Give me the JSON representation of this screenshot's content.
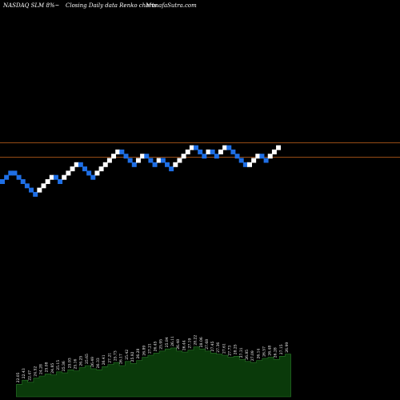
{
  "header": {
    "left": "NASDAQ SLM 8%~",
    "middle": "Closing Daily data  Renko  charts",
    "right": "MunafaSutra.com"
  },
  "colors": {
    "background": "#000000",
    "up_brick": "#ffffff",
    "down_brick": "#1f6fe5",
    "reference_line": "#c8641e",
    "volume_area": "#0a3a0a",
    "volume_edge": "#2a7a2a"
  },
  "chart_data": {
    "type": "renko",
    "brick_levels": [
      16,
      17,
      18,
      18,
      17,
      16,
      15,
      14,
      13,
      14,
      15,
      16,
      17,
      17,
      16,
      17,
      18,
      19,
      20,
      20,
      19,
      18,
      17,
      18,
      19,
      20,
      21,
      22,
      23,
      23,
      22,
      21,
      20,
      21,
      22,
      22,
      21,
      20,
      21,
      21,
      20,
      19,
      20,
      21,
      22,
      23,
      24,
      24,
      23,
      22,
      23,
      23,
      22,
      23,
      24,
      24,
      23,
      22,
      21,
      20,
      20,
      21,
      22,
      22,
      21,
      22,
      23,
      24
    ],
    "brick_colors": [
      "down",
      "down",
      "down",
      "down",
      "down",
      "down",
      "down",
      "down",
      "down",
      "up",
      "up",
      "up",
      "up",
      "down",
      "down",
      "up",
      "up",
      "up",
      "up",
      "down",
      "down",
      "down",
      "down",
      "up",
      "up",
      "up",
      "up",
      "up",
      "up",
      "down",
      "down",
      "down",
      "down",
      "up",
      "up",
      "down",
      "down",
      "down",
      "up",
      "down",
      "down",
      "down",
      "up",
      "up",
      "up",
      "up",
      "up",
      "down",
      "down",
      "down",
      "up",
      "down",
      "down",
      "up",
      "up",
      "down",
      "down",
      "down",
      "down",
      "down",
      "up",
      "up",
      "up",
      "down",
      "down",
      "up",
      "up",
      "up"
    ],
    "reference_lines": [
      24,
      21
    ],
    "volume_labels": [
      "22.05",
      "22.43",
      "22.47",
      "24.52",
      "24.28",
      "25.08",
      "24.85",
      "25.15",
      "25.36",
      "25.93",
      "25.16",
      "26.25",
      "25.65",
      "26.49",
      "26.33",
      "26.41",
      "27.21",
      "25.73",
      "26.17",
      "25.42",
      "25.92",
      "26.28",
      "26.89",
      "27.21",
      "26.45",
      "25.95",
      "25.84",
      "26.11",
      "26.48",
      "26.44",
      "27.19",
      "28.22",
      "28.06",
      "27.68",
      "27.45",
      "27.36",
      "27.61",
      "27.73",
      "28.25",
      "27.31",
      "26.85",
      "27.09",
      "26.14",
      "26.57",
      "26.48",
      "26.28",
      "27.15",
      "26.99"
    ],
    "volume_values": [
      12,
      16,
      14,
      18,
      20,
      22,
      21,
      24,
      23,
      26,
      25,
      28,
      30,
      27,
      26,
      29,
      31,
      33,
      30,
      34,
      32,
      35,
      38,
      40,
      42,
      44,
      46,
      47,
      44,
      43,
      45,
      48,
      46,
      44,
      42,
      41,
      40,
      38,
      39,
      36,
      34,
      33,
      35,
      37,
      38,
      36,
      39,
      41
    ]
  }
}
